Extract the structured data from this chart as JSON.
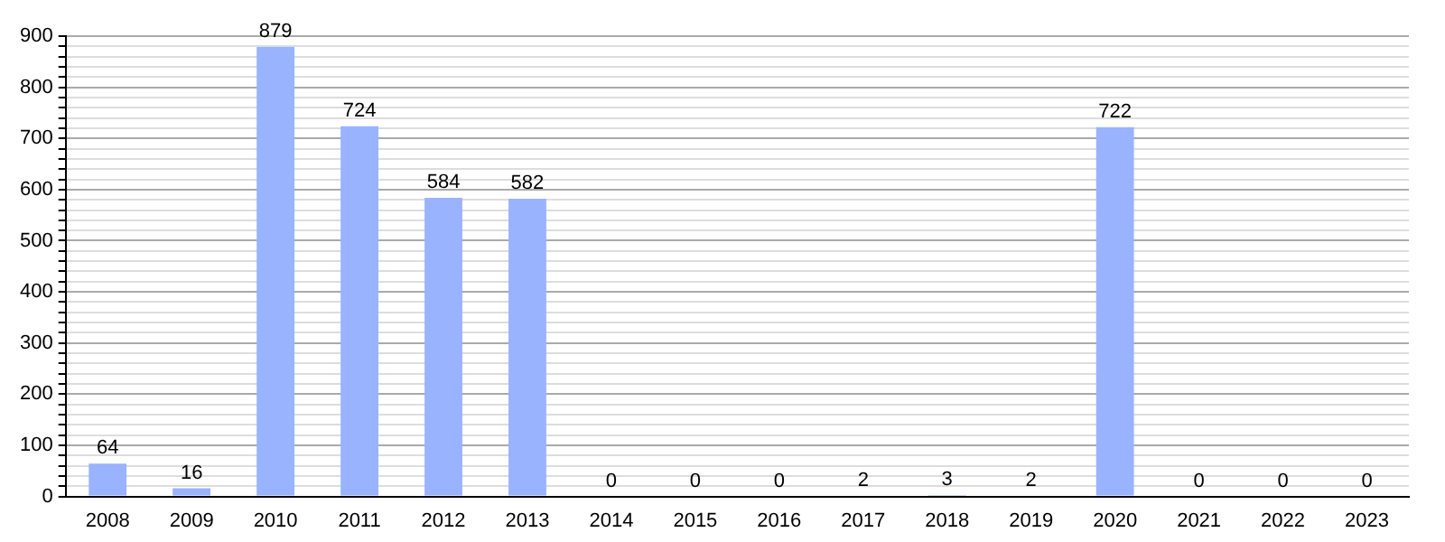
{
  "chart_data": {
    "type": "bar",
    "categories": [
      "2008",
      "2009",
      "2010",
      "2011",
      "2012",
      "2013",
      "2014",
      "2015",
      "2016",
      "2017",
      "2018",
      "2019",
      "2020",
      "2021",
      "2022",
      "2023"
    ],
    "values": [
      64,
      16,
      879,
      724,
      584,
      582,
      0,
      0,
      0,
      2,
      3,
      2,
      722,
      0,
      0,
      0
    ],
    "color": "#99b3ff",
    "ylim": [
      0,
      900
    ],
    "yticks": [
      0,
      {
        "value": 20,
        "label": null
      },
      {
        "value": 40,
        "label": null
      },
      {
        "value": 60,
        "label": null
      },
      {
        "value": 80,
        "label": null
      },
      100,
      {
        "value": 120,
        "label": null
      },
      {
        "value": 140,
        "label": null
      },
      {
        "value": 160,
        "label": null
      },
      {
        "value": 180,
        "label": null
      },
      200,
      {
        "value": 220,
        "label": null
      },
      {
        "value": 240,
        "label": null
      },
      {
        "value": 260,
        "label": null
      },
      {
        "value": 280,
        "label": null
      },
      300,
      {
        "value": 320,
        "label": null
      },
      {
        "value": 340,
        "label": null
      },
      {
        "value": 360,
        "label": null
      },
      {
        "value": 380,
        "label": null
      },
      400,
      {
        "value": 420,
        "label": null
      },
      {
        "value": 440,
        "label": null
      },
      {
        "value": 460,
        "label": null
      },
      {
        "value": 480,
        "label": null
      },
      500,
      {
        "value": 520,
        "label": null
      },
      {
        "value": 540,
        "label": null
      },
      {
        "value": 560,
        "label": null
      },
      {
        "value": 580,
        "label": null
      },
      600,
      {
        "value": 620,
        "label": null
      },
      {
        "value": 640,
        "label": null
      },
      {
        "value": 660,
        "label": null
      },
      {
        "value": 680,
        "label": null
      },
      700,
      {
        "value": 720,
        "label": null
      },
      {
        "value": 740,
        "label": null
      },
      {
        "value": 760,
        "label": null
      },
      {
        "value": 780,
        "label": null
      },
      800,
      {
        "value": 820,
        "label": null
      },
      {
        "value": 840,
        "label": null
      },
      {
        "value": 860,
        "label": null
      },
      {
        "value": 880,
        "label": null
      },
      900
    ],
    "grid": "y",
    "data_labels": true
  }
}
